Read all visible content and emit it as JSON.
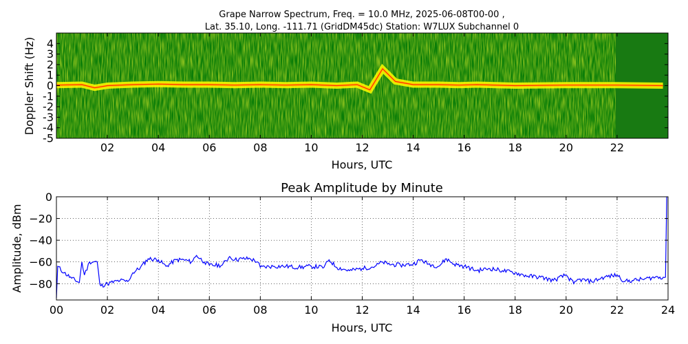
{
  "figure": {
    "title_line1": "Grape Narrow Spectrum, Freq. = 10.0 MHz, 2025-06-08T00-00 ,",
    "title_line2": "Lat.  35.10, Long. -111.71 (GridDM45dc) Station: W7LUX Subchannel 0"
  },
  "colors": {
    "spectrogram_low": "#007f00",
    "spectrogram_mid": "#ffff00",
    "spectrogram_high": "#ff0000",
    "line": "#0000ff"
  },
  "chart_data": [
    {
      "type": "heatmap",
      "title": "",
      "xlabel": "Hours, UTC",
      "ylabel": "Doppler Shift (Hz)",
      "xlim": [
        0,
        24
      ],
      "ylim": [
        -5,
        5
      ],
      "x_ticks": [
        {
          "v": 2,
          "label": "02"
        },
        {
          "v": 4,
          "label": "04"
        },
        {
          "v": 6,
          "label": "06"
        },
        {
          "v": 8,
          "label": "08"
        },
        {
          "v": 10,
          "label": "10"
        },
        {
          "v": 12,
          "label": "12"
        },
        {
          "v": 14,
          "label": "14"
        },
        {
          "v": 16,
          "label": "16"
        },
        {
          "v": 18,
          "label": "18"
        },
        {
          "v": 20,
          "label": "20"
        },
        {
          "v": 22,
          "label": "22"
        }
      ],
      "y_ticks": [
        {
          "v": 4,
          "label": "4"
        },
        {
          "v": 3,
          "label": "3"
        },
        {
          "v": 2,
          "label": "2"
        },
        {
          "v": 1,
          "label": "1"
        },
        {
          "v": 0,
          "label": "0"
        },
        {
          "v": -1,
          "label": "-1"
        },
        {
          "v": -2,
          "label": "-2"
        },
        {
          "v": -3,
          "label": "-3"
        },
        {
          "v": -4,
          "label": "-4"
        },
        {
          "v": -5,
          "label": "-5"
        }
      ],
      "doppler_trace": {
        "hours": [
          0,
          1,
          1.5,
          2,
          3,
          4,
          5,
          6,
          7,
          8,
          9,
          10,
          11,
          11.8,
          12.3,
          12.8,
          13.3,
          14,
          15,
          15.8,
          16.5,
          18,
          20,
          22,
          23.8
        ],
        "shift_hz": [
          0.05,
          0.1,
          -0.2,
          0.0,
          0.1,
          0.15,
          0.1,
          0.1,
          0.05,
          0.1,
          0.05,
          0.1,
          0.0,
          0.1,
          -0.4,
          1.6,
          0.4,
          0.1,
          0.1,
          0.05,
          0.1,
          0.0,
          0.05,
          0.05,
          0.0
        ]
      }
    },
    {
      "type": "line",
      "title": "Peak Amplitude by Minute",
      "xlabel": "Hours, UTC",
      "ylabel": "Amplitude, dBm",
      "xlim": [
        0,
        24
      ],
      "ylim": [
        -95,
        0
      ],
      "grid": true,
      "x_ticks": [
        {
          "v": 0,
          "label": "00"
        },
        {
          "v": 2,
          "label": "02"
        },
        {
          "v": 4,
          "label": "04"
        },
        {
          "v": 6,
          "label": "06"
        },
        {
          "v": 8,
          "label": "08"
        },
        {
          "v": 10,
          "label": "10"
        },
        {
          "v": 12,
          "label": "12"
        },
        {
          "v": 14,
          "label": "14"
        },
        {
          "v": 16,
          "label": "16"
        },
        {
          "v": 18,
          "label": "18"
        },
        {
          "v": 20,
          "label": "20"
        },
        {
          "v": 22,
          "label": "22"
        },
        {
          "v": 24,
          "label": "24"
        }
      ],
      "y_ticks": [
        {
          "v": 0,
          "label": "0"
        },
        {
          "v": -20,
          "label": "−20"
        },
        {
          "v": -40,
          "label": "−40"
        },
        {
          "v": -60,
          "label": "−60"
        },
        {
          "v": -80,
          "label": "−80"
        }
      ],
      "x": [
        0,
        0.05,
        0.3,
        0.6,
        0.9,
        1.0,
        1.1,
        1.3,
        1.6,
        1.7,
        1.75,
        2.0,
        2.5,
        2.8,
        3.0,
        3.3,
        3.6,
        4.0,
        4.3,
        4.7,
        5.0,
        5.3,
        5.5,
        5.8,
        6.0,
        6.5,
        6.8,
        7.0,
        7.3,
        7.6,
        7.9,
        8.0,
        8.5,
        9.0,
        9.5,
        10.0,
        10.5,
        10.7,
        11.0,
        11.5,
        12.0,
        12.5,
        12.8,
        13.0,
        13.5,
        14.0,
        14.3,
        14.6,
        15.0,
        15.3,
        15.6,
        16.0,
        16.5,
        17.0,
        17.5,
        18.0,
        18.5,
        19.0,
        19.5,
        20.0,
        20.3,
        20.5,
        21.0,
        21.5,
        22.0,
        22.3,
        22.6,
        23.0,
        23.5,
        23.9,
        23.95
      ],
      "y": [
        -93,
        -64,
        -70,
        -75,
        -79,
        -60,
        -72,
        -60,
        -60,
        -80,
        -82,
        -80,
        -77,
        -78,
        -70,
        -65,
        -57,
        -58,
        -64,
        -58,
        -58,
        -60,
        -54,
        -60,
        -63,
        -63,
        -55,
        -58,
        -57,
        -57,
        -60,
        -65,
        -64,
        -64,
        -65,
        -64,
        -65,
        -58,
        -65,
        -68,
        -66,
        -64,
        -60,
        -62,
        -63,
        -62,
        -58,
        -62,
        -64,
        -57,
        -62,
        -64,
        -68,
        -66,
        -68,
        -70,
        -73,
        -74,
        -77,
        -72,
        -80,
        -76,
        -78,
        -74,
        -72,
        -78,
        -77,
        -76,
        -74,
        -74,
        0
      ]
    }
  ]
}
